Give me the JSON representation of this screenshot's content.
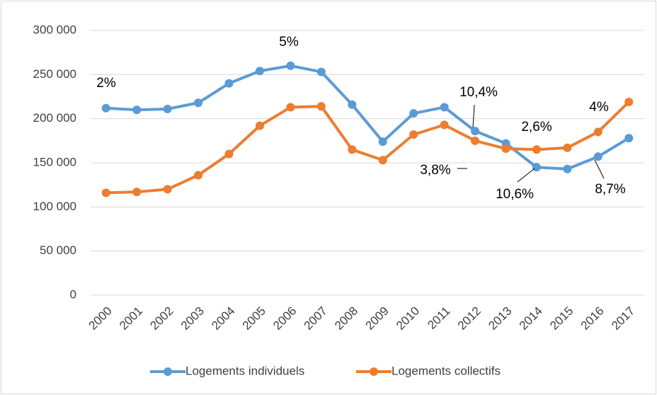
{
  "chart_data": {
    "type": "line",
    "categories": [
      "2000",
      "2001",
      "2002",
      "2003",
      "2004",
      "2005",
      "2006",
      "2007",
      "2008",
      "2009",
      "2010",
      "2011",
      "2012",
      "2013",
      "2014",
      "2015",
      "2016",
      "2017"
    ],
    "series": [
      {
        "name": "Logements individuels",
        "color": "#5b9bd5",
        "values": [
          212000,
          210000,
          211000,
          218000,
          240000,
          254000,
          260000,
          253000,
          216000,
          174000,
          206000,
          213000,
          186000,
          172000,
          145000,
          143000,
          157000,
          178000
        ]
      },
      {
        "name": "Logements collectifs",
        "color": "#ed7d31",
        "values": [
          116000,
          117000,
          120000,
          136000,
          160000,
          192000,
          213000,
          214000,
          165000,
          153000,
          182000,
          193000,
          175000,
          166000,
          165000,
          167000,
          185000,
          219000
        ]
      }
    ],
    "ylim": [
      0,
      300000
    ],
    "yticks": [
      0,
      {
        "value": 50000,
        "label": "50 000"
      },
      {
        "value": 100000,
        "label": "100 000"
      },
      {
        "value": 150000,
        "label": "150 000"
      },
      {
        "value": 200000,
        "label": "200 000"
      },
      {
        "value": 250000,
        "label": "250 000"
      },
      {
        "value": 300000,
        "label": "300 000"
      }
    ],
    "grid": true,
    "legend": "bottom",
    "annotations": [
      "2%",
      "5%",
      "10,4%",
      "3,8%",
      "2,6%",
      "4%",
      "10,6%",
      "8,7%"
    ]
  }
}
